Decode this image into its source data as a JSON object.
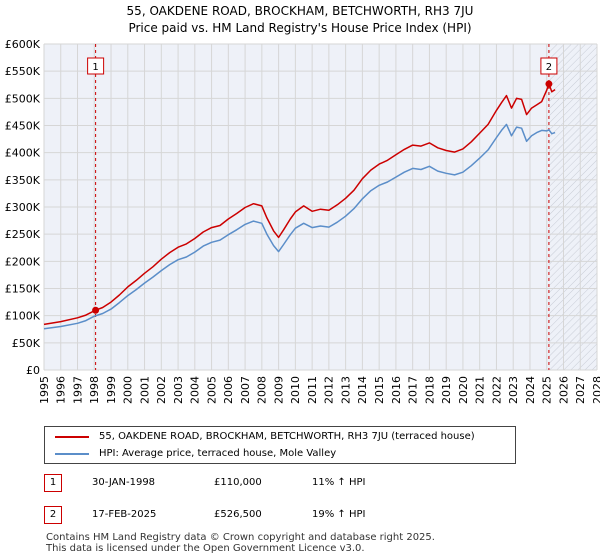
{
  "header": {
    "title": "55, OAKDENE ROAD, BROCKHAM, BETCHWORTH, RH3 7JU",
    "subtitle": "Price paid vs. HM Land Registry's House Price Index (HPI)"
  },
  "chart_data": {
    "type": "line",
    "title": "55, OAKDENE ROAD, BROCKHAM, BETCHWORTH, RH3 7JU",
    "subtitle": "Price paid vs. HM Land Registry's House Price Index (HPI)",
    "xlabel": "",
    "ylabel": "",
    "xlim": [
      1995,
      2028
    ],
    "ylim": [
      0,
      600000
    ],
    "x_ticks": [
      1995,
      1996,
      1997,
      1998,
      1999,
      2000,
      2001,
      2002,
      2003,
      2004,
      2005,
      2006,
      2007,
      2008,
      2009,
      2010,
      2011,
      2012,
      2013,
      2014,
      2015,
      2016,
      2017,
      2018,
      2019,
      2020,
      2021,
      2022,
      2023,
      2024,
      2025,
      2026,
      2027,
      2028
    ],
    "x_tick_labels": [
      "1995",
      "1996",
      "1997",
      "1998",
      "1999",
      "2000",
      "2001",
      "2002",
      "2003",
      "2004",
      "2005",
      "2006",
      "2007",
      "2008",
      "2009",
      "2010",
      "2011",
      "2012",
      "2013",
      "2014",
      "2015",
      "2016",
      "2017",
      "2018",
      "2019",
      "2020",
      "2021",
      "2022",
      "2023",
      "2024",
      "2025",
      "2026",
      "2027",
      "2028"
    ],
    "y_ticks": [
      0,
      50000,
      100000,
      150000,
      200000,
      250000,
      300000,
      350000,
      400000,
      450000,
      500000,
      550000,
      600000
    ],
    "y_tick_labels": [
      "£0",
      "£50K",
      "£100K",
      "£150K",
      "£200K",
      "£250K",
      "£300K",
      "£350K",
      "£400K",
      "£450K",
      "£500K",
      "£550K",
      "£600K"
    ],
    "grid": true,
    "forecast_shading_from": 2025.13,
    "colors": {
      "property": "#cc0000",
      "hpi": "#5b8ec9",
      "grid": "#d6d6d6",
      "plot_bg": "#eef1f8"
    },
    "series": [
      {
        "name": "55, OAKDENE ROAD, BROCKHAM, BETCHWORTH, RH3 7JU (terraced house)",
        "color": "#cc0000",
        "x": [
          1995,
          1996,
          1997,
          1997.5,
          1998.08,
          1998.5,
          1999,
          1999.5,
          2000,
          2000.5,
          2001,
          2001.5,
          2002,
          2002.5,
          2003,
          2003.5,
          2004,
          2004.5,
          2005,
          2005.5,
          2006,
          2006.5,
          2007,
          2007.5,
          2008,
          2008.3,
          2008.7,
          2009,
          2009.3,
          2009.7,
          2010,
          2010.5,
          2011,
          2011.5,
          2012,
          2012.5,
          2013,
          2013.5,
          2014,
          2014.5,
          2015,
          2015.5,
          2016,
          2016.5,
          2017,
          2017.5,
          2018,
          2018.5,
          2019,
          2019.5,
          2020,
          2020.5,
          2021,
          2021.5,
          2022,
          2022.3,
          2022.6,
          2022.9,
          2023.2,
          2023.5,
          2023.8,
          2024.1,
          2024.4,
          2024.7,
          2025.0,
          2025.13,
          2025.3,
          2025.5
        ],
        "y": [
          84000,
          89000,
          96000,
          101000,
          110000,
          115000,
          125000,
          138000,
          153000,
          165000,
          178000,
          190000,
          204000,
          216000,
          226000,
          232000,
          242000,
          254000,
          262000,
          266000,
          278000,
          288000,
          299000,
          306000,
          302000,
          280000,
          256000,
          244000,
          258000,
          278000,
          291000,
          302000,
          292000,
          296000,
          294000,
          304000,
          316000,
          331000,
          352000,
          368000,
          379000,
          386000,
          396000,
          406000,
          414000,
          412000,
          418000,
          409000,
          404000,
          401000,
          407000,
          420000,
          436000,
          452000,
          478000,
          492000,
          505000,
          482000,
          500000,
          498000,
          470000,
          482000,
          488000,
          494000,
          515000,
          526500,
          512000,
          516000
        ]
      },
      {
        "name": "HPI: Average price, terraced house, Mole Valley",
        "color": "#5b8ec9",
        "x": [
          1995,
          1996,
          1997,
          1997.5,
          1998,
          1998.5,
          1999,
          1999.5,
          2000,
          2000.5,
          2001,
          2001.5,
          2002,
          2002.5,
          2003,
          2003.5,
          2004,
          2004.5,
          2005,
          2005.5,
          2006,
          2006.5,
          2007,
          2007.5,
          2008,
          2008.3,
          2008.7,
          2009,
          2009.3,
          2009.7,
          2010,
          2010.5,
          2011,
          2011.5,
          2012,
          2012.5,
          2013,
          2013.5,
          2014,
          2014.5,
          2015,
          2015.5,
          2016,
          2016.5,
          2017,
          2017.5,
          2018,
          2018.5,
          2019,
          2019.5,
          2020,
          2020.5,
          2021,
          2021.5,
          2022,
          2022.3,
          2022.6,
          2022.9,
          2023.2,
          2023.5,
          2023.8,
          2024.1,
          2024.4,
          2024.7,
          2025.0,
          2025.13,
          2025.3,
          2025.5
        ],
        "y": [
          76000,
          80000,
          86000,
          91000,
          99000,
          104000,
          112000,
          124000,
          137000,
          148000,
          160000,
          171000,
          183000,
          194000,
          203000,
          208000,
          217000,
          228000,
          235000,
          239000,
          249000,
          258000,
          268000,
          274000,
          270000,
          250000,
          229000,
          218000,
          231000,
          249000,
          261000,
          270000,
          262000,
          265000,
          263000,
          272000,
          283000,
          297000,
          315000,
          330000,
          340000,
          346000,
          355000,
          364000,
          371000,
          369000,
          375000,
          366000,
          362000,
          359000,
          364000,
          376000,
          390000,
          405000,
          428000,
          441000,
          452000,
          431000,
          447000,
          445000,
          421000,
          431000,
          437000,
          441000,
          440000,
          442000,
          435000,
          437000
        ]
      }
    ],
    "sales": [
      {
        "label": "1",
        "x": 1998.08,
        "y": 110000
      },
      {
        "label": "2",
        "x": 2025.13,
        "y": 526500
      }
    ]
  },
  "legend": {
    "property_label": "55, OAKDENE ROAD, BROCKHAM, BETCHWORTH, RH3 7JU (terraced house)",
    "hpi_label": "HPI: Average price, terraced house, Mole Valley"
  },
  "transactions": [
    {
      "num": "1",
      "date": "30-JAN-1998",
      "price": "£110,000",
      "hpi": "11% ↑ HPI"
    },
    {
      "num": "2",
      "date": "17-FEB-2025",
      "price": "£526,500",
      "hpi": "19% ↑ HPI"
    }
  ],
  "footer": {
    "line1": "Contains HM Land Registry data © Crown copyright and database right 2025.",
    "line2": "This data is licensed under the Open Government Licence v3.0."
  }
}
